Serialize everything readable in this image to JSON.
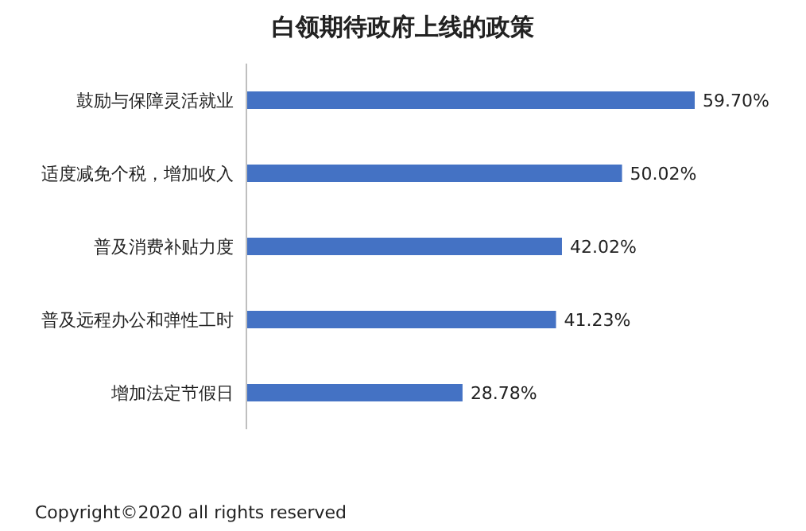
{
  "chart_data": {
    "type": "bar",
    "orientation": "horizontal",
    "title": "白领期待政府上线的政策",
    "categories": [
      "鼓励与保障灵活就业",
      "适度减免个税，增加收入",
      "普及消费补贴力度",
      "普及远程办公和弹性工时",
      "增加法定节假日"
    ],
    "values": [
      59.7,
      50.02,
      42.02,
      41.23,
      28.78
    ],
    "value_labels": [
      "59.70%",
      "50.02%",
      "42.02%",
      "41.23%",
      "28.78%"
    ],
    "color": "#4472c4",
    "annotations": [
      "Copyright©2020 all rights reserved"
    ]
  }
}
